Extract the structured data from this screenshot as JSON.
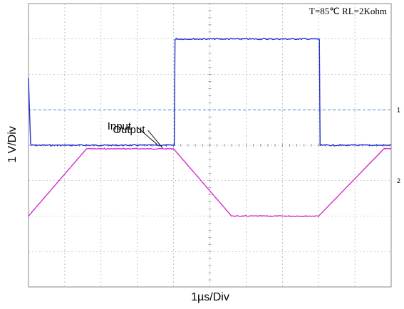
{
  "chart_data": {
    "type": "line",
    "annotation": "T=85℃ RL=2Kohm",
    "xlabel": "1µs/Div",
    "ylabel": "1 V/Div",
    "xlim": [
      0,
      10
    ],
    "ylim": [
      -4,
      4
    ],
    "grid": true,
    "colors": {
      "input": "#1f2fd0",
      "output": "#d02ed0",
      "reference": "#3a8ad8",
      "grid": "#a0a0a0"
    },
    "markers": {
      "ch1": "1",
      "ch2": "2",
      "ch1_level": 1.0,
      "ch2_level": -1.0
    },
    "series": [
      {
        "name": "Input",
        "x": [
          0,
          0.02,
          0.06,
          4.02,
          4.04,
          4.08,
          8.02,
          8.04,
          8.08,
          10
        ],
        "y": [
          1.9,
          1.2,
          0.0,
          0.0,
          3.0,
          3.0,
          3.0,
          0.0,
          0.0,
          0.0
        ]
      },
      {
        "name": "Output",
        "x": [
          0,
          1.6,
          2.1,
          4.0,
          5.6,
          6.0,
          8.0,
          9.8,
          10
        ],
        "y": [
          -2.0,
          -0.1,
          -0.1,
          -0.1,
          -2.0,
          -2.0,
          -2.0,
          -0.1,
          -0.1
        ]
      }
    ],
    "trace_labels": [
      {
        "text": "Input",
        "target": [
          3.55,
          0.0
        ]
      },
      {
        "text": "Output",
        "target": [
          3.7,
          -0.1
        ]
      }
    ]
  }
}
